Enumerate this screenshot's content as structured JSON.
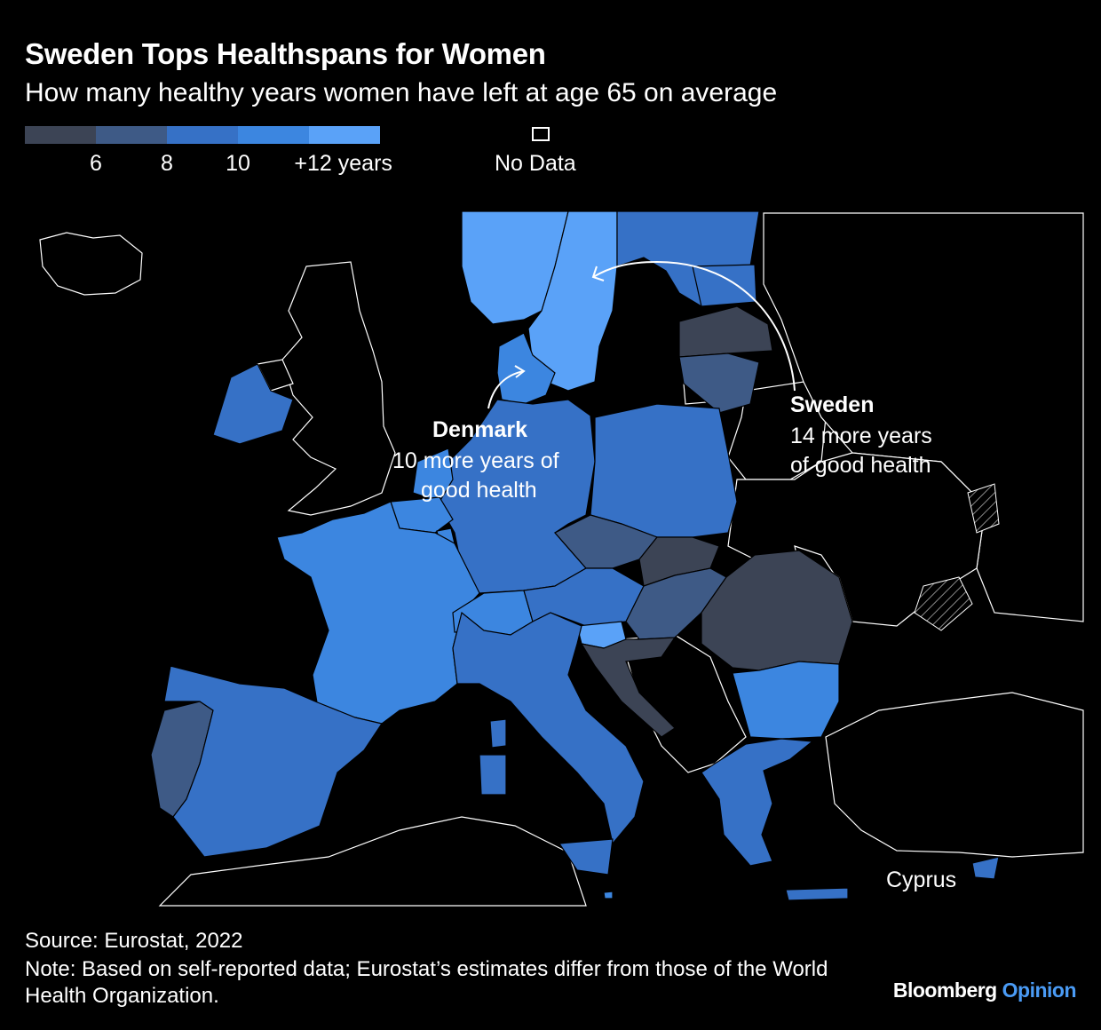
{
  "header": {
    "title": "Sweden Tops Healthspans for Women",
    "subtitle": "How many healthy years women have left at age 65 on average"
  },
  "legend": {
    "colors": [
      "#3c4455",
      "#3e5a86",
      "#3671c6",
      "#3c86e0",
      "#5aa2f8"
    ],
    "ticks": [
      "6",
      "8",
      "10",
      "+12 years"
    ],
    "no_data_label": "No Data"
  },
  "map": {
    "value_classes": {
      "below_6": [
        "Lithuania",
        "Hungary",
        "Croatia",
        "Romania"
      ],
      "6_to_8": [
        "Portugal",
        "Latvia",
        "Czechia",
        "Slovakia"
      ],
      "8_to_10": [
        "Spain",
        "Italy",
        "Germany",
        "Poland",
        "Austria",
        "Estonia",
        "Greece",
        "Finland",
        "Cyprus",
        "Ireland"
      ],
      "10_to_12": [
        "France",
        "Belgium",
        "Netherlands",
        "Luxembourg",
        "Denmark",
        "Bulgaria",
        "Switzerland",
        "Malta"
      ],
      "12_plus": [
        "Sweden",
        "Norway",
        "Slovenia"
      ]
    },
    "label_cyprus": "Cyprus"
  },
  "annotations": {
    "denmark": {
      "name": "Denmark",
      "line1": "10 more years of",
      "line2": "good health"
    },
    "sweden": {
      "name": "Sweden",
      "line1": "14 more years",
      "line2": "of good health"
    }
  },
  "footer": {
    "source": "Source: Eurostat, 2022",
    "note": "Note: Based on self-reported data; Eurostat’s estimates differ from those of the World Health Organization.",
    "brand_a": "Bloomberg",
    "brand_b": "Opinion"
  }
}
